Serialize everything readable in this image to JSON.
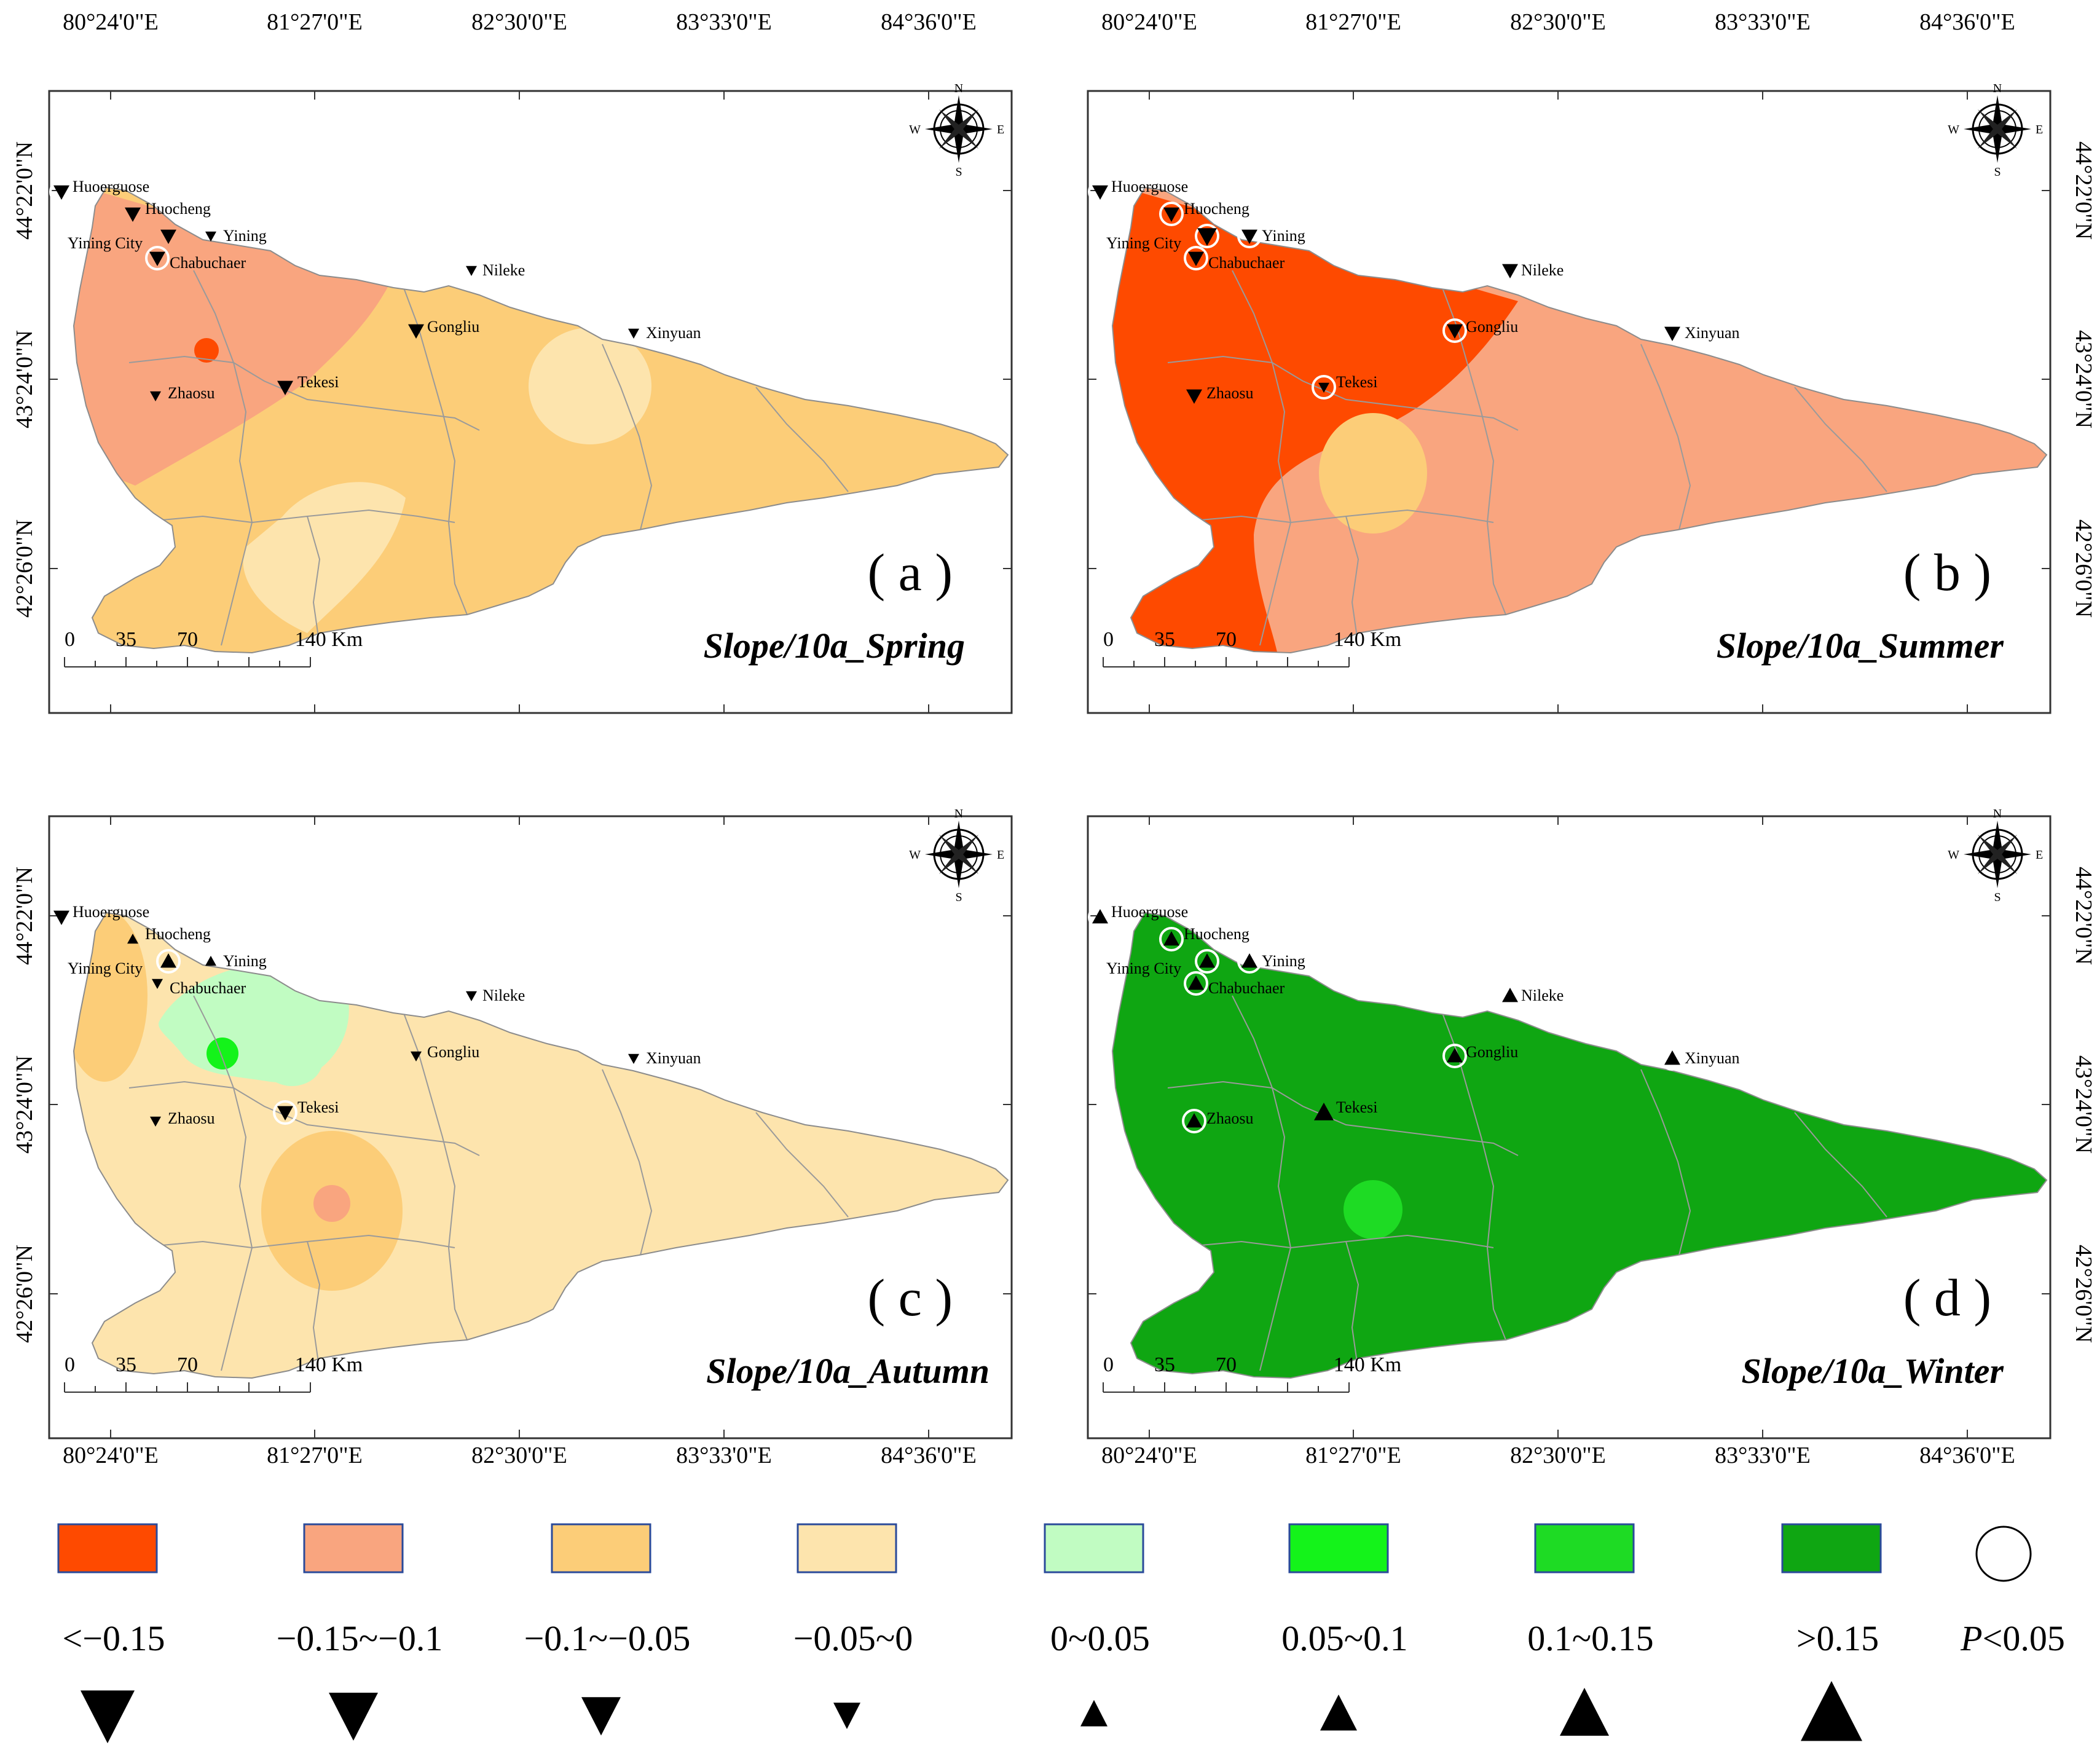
{
  "lon_ticks": [
    "80°24'0\"E",
    "81°27'0\"E",
    "82°30'0\"E",
    "83°33'0\"E",
    "84°36'0\"E"
  ],
  "lat_ticks": [
    "44°22'0\"N",
    "43°24'0\"N",
    "42°26'0\"N"
  ],
  "compass_letters": {
    "n": "N",
    "s": "S",
    "e": "E",
    "w": "W"
  },
  "scalebar": {
    "ticks": [
      "0",
      "35",
      "70",
      "140 Km"
    ]
  },
  "stations": [
    {
      "key": "huoerguose",
      "name": "Huoerguose"
    },
    {
      "key": "huocheng",
      "name": "Huocheng"
    },
    {
      "key": "yiningcity",
      "name": "Yining City"
    },
    {
      "key": "yining",
      "name": "Yining"
    },
    {
      "key": "chabuchaer",
      "name": "Chabuchaer"
    },
    {
      "key": "nileke",
      "name": "Nileke"
    },
    {
      "key": "gongliu",
      "name": "Gongliu"
    },
    {
      "key": "xinyuan",
      "name": "Xinyuan"
    },
    {
      "key": "zhaosu",
      "name": "Zhaosu"
    },
    {
      "key": "tekesi",
      "name": "Tekesi"
    }
  ],
  "panels": [
    {
      "label": "( a )",
      "title": "Slope/10a_Spring"
    },
    {
      "label": "( b )",
      "title": "Slope/10a_Summer"
    },
    {
      "label": "( c )",
      "title": "Slope/10a_Autumn"
    },
    {
      "label": "( d )",
      "title": "Slope/10a_Winter"
    }
  ],
  "legend": {
    "classes": [
      {
        "label": "<−0.15",
        "color": "#fe4a00",
        "triangle": "down"
      },
      {
        "label": "−0.15~−0.1",
        "color": "#f9a57f",
        "triangle": "down"
      },
      {
        "label": "−0.1~−0.05",
        "color": "#fccd78",
        "triangle": "down"
      },
      {
        "label": "−0.05~0",
        "color": "#fde4ad",
        "triangle": "down"
      },
      {
        "label": "0~0.05",
        "color": "#c1fcc2",
        "triangle": "up"
      },
      {
        "label": "0.05~0.1",
        "color": "#14f31a",
        "triangle": "up"
      },
      {
        "label": "0.1~0.15",
        "color": "#1edb24",
        "triangle": "up"
      },
      {
        "label": ">0.15",
        "color": "#0fa612",
        "triangle": "up"
      }
    ],
    "significance": {
      "symbol_label": "P",
      "text": "<0.05"
    }
  },
  "colors": {
    "boundary": "#9a9a9a",
    "frame": "#333333"
  }
}
